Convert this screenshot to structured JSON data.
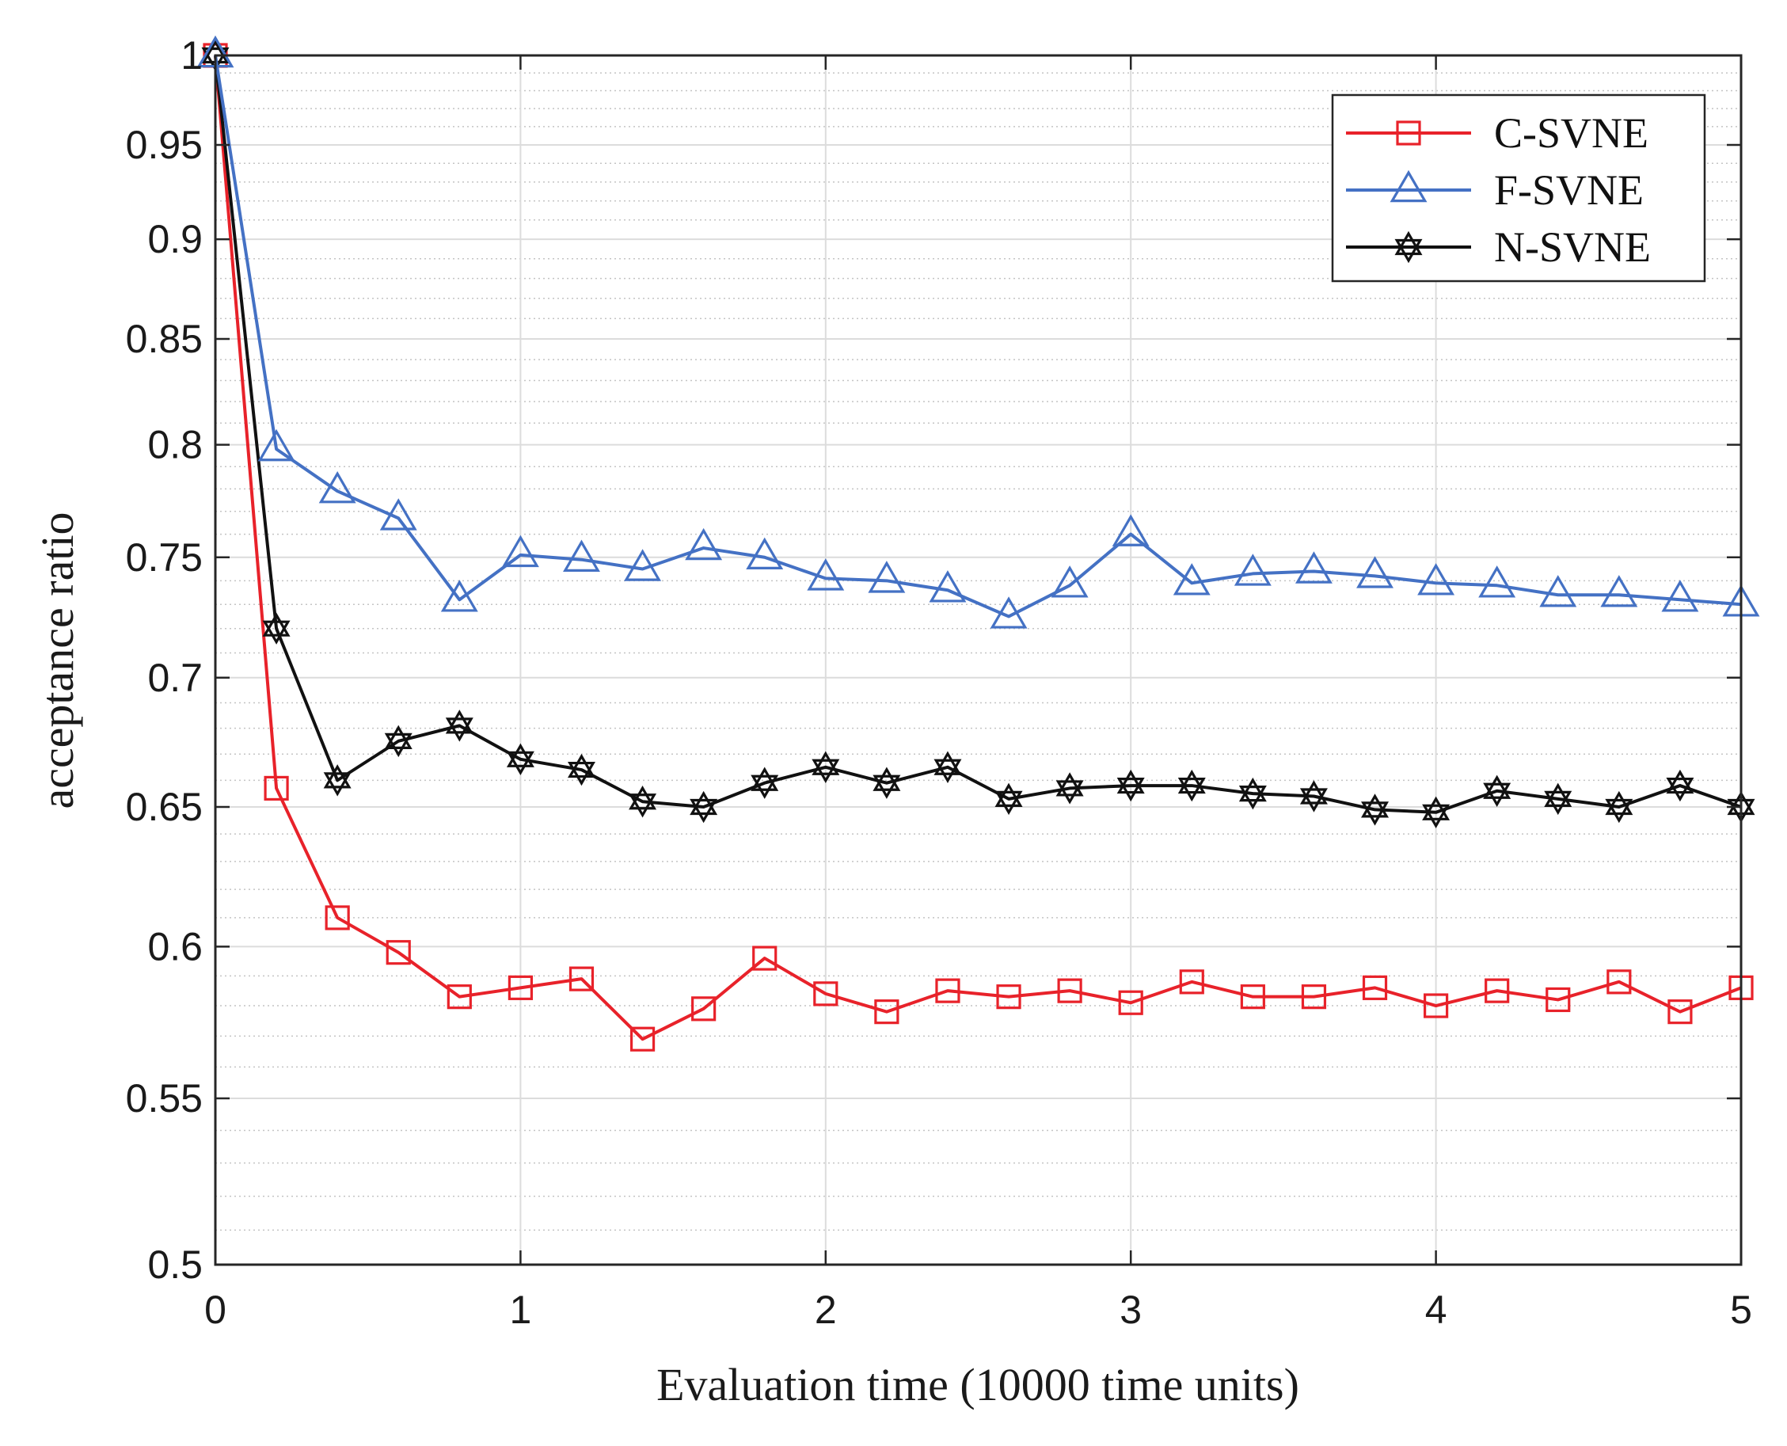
{
  "chart_data": {
    "type": "line",
    "title": "",
    "xlabel": "Evaluation time (10000 time units)",
    "ylabel": "acceptance ratio",
    "xlim": [
      0,
      5
    ],
    "ylim": [
      0.5,
      1
    ],
    "y_scale": "log",
    "x_ticks": [
      0,
      1,
      2,
      3,
      4,
      5
    ],
    "x_tick_labels": [
      "0",
      "1",
      "2",
      "3",
      "4",
      "5"
    ],
    "y_ticks": [
      0.5,
      0.55,
      0.6,
      0.65,
      0.7,
      0.75,
      0.8,
      0.85,
      0.9,
      0.95,
      1
    ],
    "y_tick_labels": [
      "0.5",
      "0.55",
      "0.6",
      "0.65",
      "0.7",
      "0.75",
      "0.8",
      "0.85",
      "0.9",
      "0.95",
      "1"
    ],
    "grid": true,
    "minor_grid": true,
    "legend_position": "top-right",
    "x": [
      0,
      0.2,
      0.4,
      0.6,
      0.8,
      1.0,
      1.2,
      1.4,
      1.6,
      1.8,
      2.0,
      2.2,
      2.4,
      2.6,
      2.8,
      3.0,
      3.2,
      3.4,
      3.6,
      3.8,
      4.0,
      4.2,
      4.4,
      4.6,
      4.8,
      5.0
    ],
    "series": [
      {
        "name": "C-SVNE",
        "color": "#e8222a",
        "marker": "square",
        "values": [
          1.0,
          0.657,
          0.61,
          0.598,
          0.583,
          0.586,
          0.589,
          0.569,
          0.579,
          0.596,
          0.584,
          0.578,
          0.585,
          0.583,
          0.585,
          0.581,
          0.588,
          0.583,
          0.583,
          0.586,
          0.58,
          0.585,
          0.582,
          0.588,
          0.578,
          0.586
        ]
      },
      {
        "name": "F-SVNE",
        "color": "#4471c4",
        "marker": "triangle",
        "values": [
          1.0,
          0.798,
          0.779,
          0.767,
          0.732,
          0.751,
          0.749,
          0.745,
          0.754,
          0.75,
          0.741,
          0.74,
          0.736,
          0.725,
          0.738,
          0.76,
          0.739,
          0.743,
          0.744,
          0.742,
          0.739,
          0.738,
          0.734,
          0.734,
          0.732,
          0.73
        ]
      },
      {
        "name": "N-SVNE",
        "color": "#111111",
        "marker": "hexagram",
        "values": [
          1.0,
          0.72,
          0.66,
          0.675,
          0.681,
          0.668,
          0.664,
          0.652,
          0.65,
          0.659,
          0.665,
          0.659,
          0.665,
          0.653,
          0.657,
          0.658,
          0.658,
          0.655,
          0.654,
          0.649,
          0.648,
          0.656,
          0.653,
          0.65,
          0.658,
          0.65
        ]
      }
    ]
  }
}
